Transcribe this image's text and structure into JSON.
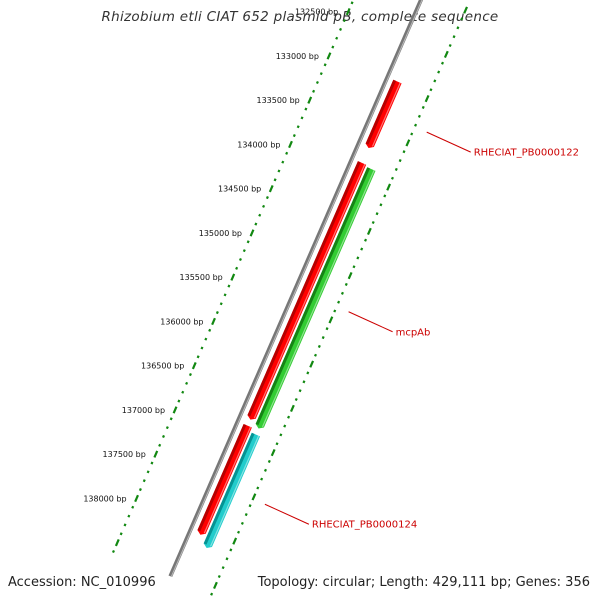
{
  "title": "Rhizobium etli CIAT 652 plasmid pB, complete sequence",
  "accession_label": "Accession: NC_010996",
  "summary_label": "Topology: circular; Length: 429,111 bp; Genes: 356",
  "ticks": [
    {
      "value": 132500,
      "label": "132500 bp"
    },
    {
      "value": 133000,
      "label": "133000 bp"
    },
    {
      "value": 133500,
      "label": "133500 bp"
    },
    {
      "value": 134000,
      "label": "134000 bp"
    },
    {
      "value": 134500,
      "label": "134500 bp"
    },
    {
      "value": 135000,
      "label": "135000 bp"
    },
    {
      "value": 135500,
      "label": "135500 bp"
    },
    {
      "value": 136000,
      "label": "136000 bp"
    },
    {
      "value": 136500,
      "label": "136500 bp"
    },
    {
      "value": 137000,
      "label": "137000 bp"
    },
    {
      "value": 137500,
      "label": "137500 bp"
    },
    {
      "value": 138000,
      "label": "138000 bp"
    }
  ],
  "genes": [
    {
      "track": 1,
      "start": 132960,
      "end": 133680,
      "color": "#ff0000",
      "dark": "#aa0000"
    },
    {
      "track": 1,
      "start": 133880,
      "end": 136750,
      "color": "#ff0000",
      "dark": "#aa0000"
    },
    {
      "track": 2,
      "start": 133900,
      "end": 136800,
      "color": "#33cc33",
      "dark": "#117711"
    },
    {
      "track": 1,
      "start": 136850,
      "end": 138050,
      "color": "#ff0000",
      "dark": "#aa0000"
    },
    {
      "track": 2,
      "start": 136900,
      "end": 138150,
      "color": "#22cccc",
      "dark": "#008888"
    }
  ],
  "labels": [
    {
      "text": "RHECIAT_PB0000122",
      "gene": 0
    },
    {
      "text": "mcpAb",
      "gene": 2
    },
    {
      "text": "RHECIAT_PB0000124",
      "gene": 4
    }
  ],
  "colors": {
    "backbone": "#777777",
    "tick_dots": "#118811",
    "label": "#cc0000"
  }
}
